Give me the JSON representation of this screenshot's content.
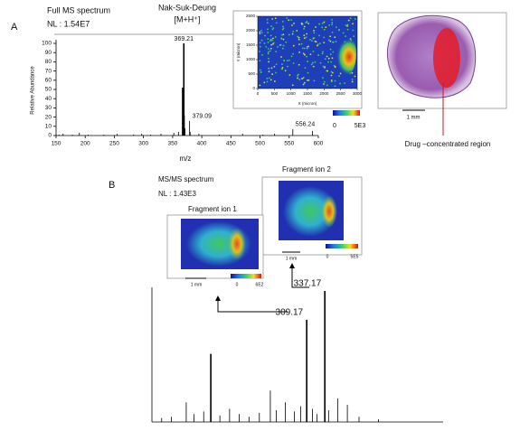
{
  "panel_labels": [
    "A",
    "B"
  ],
  "chart_data": [
    {
      "type": "stick",
      "title": "Full MS spectrum",
      "subtitle": "NL : 1.54E7",
      "annotation": "Nak-Suk-Deung",
      "annotation_ion": "[M+H⁺]",
      "x_label": "m/z",
      "y_label": "Relative Abundance",
      "x": [
        155,
        162,
        178,
        190,
        205,
        232,
        255,
        283,
        297,
        312,
        330,
        352,
        360,
        367.2,
        369.21,
        370.2,
        371.2,
        379.09,
        380.1,
        395,
        430,
        470,
        505,
        525,
        556.24,
        590
      ],
      "values": [
        1,
        2,
        1,
        3,
        1,
        1,
        2,
        1,
        2,
        1,
        2,
        3,
        4,
        52,
        100,
        22,
        8,
        16,
        4,
        2,
        1,
        2,
        1,
        2,
        7,
        5
      ],
      "labels": [
        null,
        null,
        null,
        null,
        null,
        null,
        null,
        null,
        null,
        null,
        null,
        null,
        null,
        null,
        "369.21",
        null,
        null,
        "379.09",
        null,
        null,
        null,
        null,
        null,
        null,
        "556.24",
        null
      ],
      "color": "#000000",
      "xlim": [
        150,
        600
      ],
      "xticks": [
        150,
        200,
        250,
        300,
        350,
        400,
        450,
        500,
        550,
        600
      ],
      "ylim": [
        0,
        100
      ],
      "yticks": [
        0,
        10,
        20,
        30,
        40,
        50,
        60,
        70,
        80,
        90,
        100
      ]
    },
    {
      "type": "stick",
      "title": "MS/MS spectrum",
      "subtitle": "NL : 1.43E3",
      "x": [
        85,
        100,
        123,
        135,
        150,
        161,
        175,
        190,
        205,
        220,
        236,
        253,
        262,
        276,
        290,
        300,
        309.17,
        318,
        325,
        337.17,
        343,
        357,
        372,
        390,
        420
      ],
      "values": [
        3,
        4,
        15,
        6,
        8,
        52,
        5,
        10,
        6,
        4,
        7,
        24,
        9,
        15,
        8,
        12,
        78,
        10,
        6,
        100,
        9,
        18,
        13,
        4,
        2
      ],
      "labels": [
        null,
        null,
        null,
        null,
        null,
        null,
        null,
        null,
        null,
        null,
        null,
        null,
        null,
        null,
        null,
        null,
        "309.17",
        null,
        null,
        "337.17",
        null,
        null,
        null,
        null,
        null
      ],
      "color": "#000000",
      "xlim": [
        70,
        520
      ],
      "ylim": [
        0,
        100
      ]
    }
  ],
  "imaging": {
    "full_ms": {
      "xlim": [
        0,
        3000
      ],
      "xticks": [
        0,
        500,
        1000,
        1500,
        2000,
        2500,
        3000
      ],
      "ylim": [
        0,
        2500
      ],
      "yticks": [
        0,
        500,
        1000,
        1500,
        2000,
        2500
      ],
      "x_label": "X (micron)",
      "y_label": "Y (micron)",
      "colorbar_min": 0,
      "colorbar_max": "5E3"
    },
    "tissue": {
      "scale_bar": "1 mm",
      "region_label": "Drug –concentrated region"
    },
    "fragment_1": {
      "title": "Fragment ion 1",
      "scale_bar": "1 mm",
      "colorbar_min": 0,
      "colorbar_max": "6E2"
    },
    "fragment_2": {
      "title": "Fragment ion 2",
      "scale_bar": "1 mm",
      "colorbar_min": 0,
      "colorbar_max": "5E5"
    }
  }
}
